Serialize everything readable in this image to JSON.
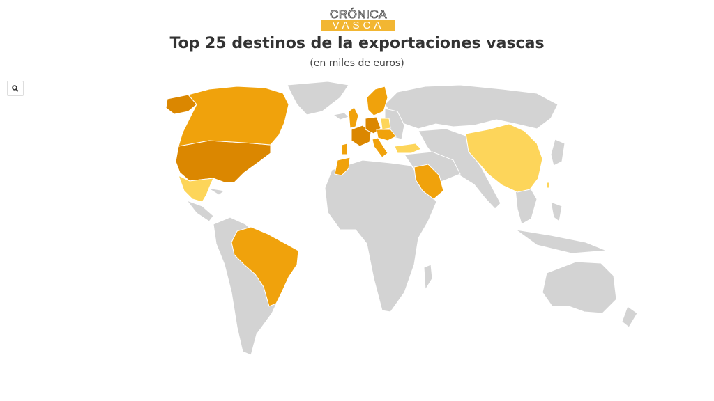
{
  "logo": {
    "top": "CRÓNICA",
    "bottom": "VASCA"
  },
  "title": "Top 25 destinos de la exportaciones vascas",
  "subtitle": "(en miles de euros)",
  "zoom_button": {
    "icon": "search-icon"
  },
  "colors": {
    "land": "#d3d3d3",
    "tier1": "#db8700",
    "tier2": "#f0a20c",
    "tier3": "#fdd55a",
    "background": "#ffffff"
  },
  "highlighted_countries": [
    {
      "name": "United States",
      "tier": "tier1"
    },
    {
      "name": "France",
      "tier": "tier1"
    },
    {
      "name": "Germany",
      "tier": "tier1"
    },
    {
      "name": "Canada",
      "tier": "tier2"
    },
    {
      "name": "Brazil",
      "tier": "tier2"
    },
    {
      "name": "United Kingdom",
      "tier": "tier2"
    },
    {
      "name": "Italy",
      "tier": "tier2"
    },
    {
      "name": "Portugal",
      "tier": "tier2"
    },
    {
      "name": "Morocco",
      "tier": "tier2"
    },
    {
      "name": "Saudi Arabia",
      "tier": "tier2"
    },
    {
      "name": "Netherlands",
      "tier": "tier2"
    },
    {
      "name": "Belgium",
      "tier": "tier2"
    },
    {
      "name": "Sweden",
      "tier": "tier2"
    },
    {
      "name": "Norway",
      "tier": "tier2"
    },
    {
      "name": "Finland",
      "tier": "tier2"
    },
    {
      "name": "Austria",
      "tier": "tier2"
    },
    {
      "name": "Czechia",
      "tier": "tier2"
    },
    {
      "name": "Switzerland",
      "tier": "tier2"
    },
    {
      "name": "Romania",
      "tier": "tier2"
    },
    {
      "name": "Mexico",
      "tier": "tier3"
    },
    {
      "name": "China",
      "tier": "tier3"
    },
    {
      "name": "Turkey",
      "tier": "tier3"
    },
    {
      "name": "Poland",
      "tier": "tier3"
    },
    {
      "name": "Taiwan",
      "tier": "tier3"
    },
    {
      "name": "Hungary",
      "tier": "tier3"
    }
  ]
}
